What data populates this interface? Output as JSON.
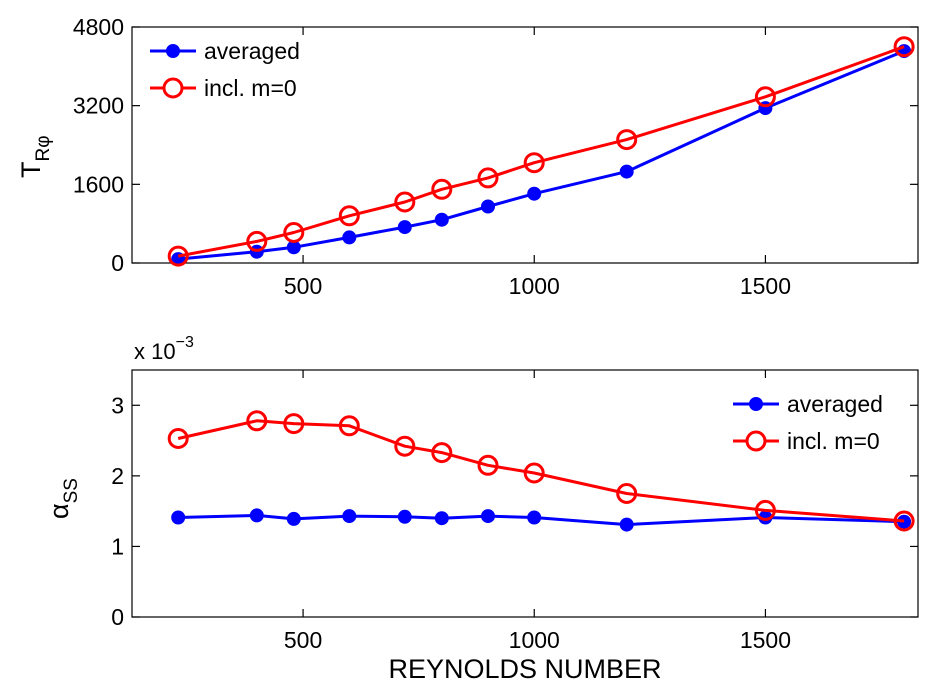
{
  "chart_data": [
    {
      "type": "line",
      "title": "",
      "xlabel": "",
      "ylabel": {
        "main": "T",
        "subscript": "Rφ"
      },
      "xlim": [
        130,
        1830
      ],
      "ylim": [
        0,
        4800
      ],
      "xticks": [
        500,
        1000,
        1500
      ],
      "yticks": [
        0,
        1600,
        3200,
        4800
      ],
      "legend": "top-left",
      "grid": false,
      "x": [
        230,
        400,
        480,
        600,
        720,
        800,
        900,
        1000,
        1200,
        1500,
        1800
      ],
      "series": [
        {
          "name": "averaged",
          "color": "#0000ff",
          "marker": "filled-circle",
          "values": [
            80,
            230,
            320,
            520,
            730,
            880,
            1150,
            1410,
            1860,
            3150,
            4310
          ]
        },
        {
          "name": "incl. m=0",
          "color": "#ff0000",
          "marker": "open-circle",
          "values": [
            140,
            440,
            620,
            960,
            1240,
            1500,
            1730,
            2040,
            2510,
            3380,
            4400
          ]
        }
      ]
    },
    {
      "type": "line",
      "title": "",
      "xlabel": "REYNOLDS NUMBER",
      "ylabel": {
        "main": "α",
        "subscript": "SS"
      },
      "multiplier": {
        "base": "x 10",
        "exponent": "−3"
      },
      "xlim": [
        130,
        1830
      ],
      "ylim": [
        0,
        3.5
      ],
      "xticks": [
        500,
        1000,
        1500
      ],
      "yticks": [
        0,
        1,
        2,
        3
      ],
      "legend": "top-right",
      "grid": false,
      "x": [
        230,
        400,
        480,
        600,
        720,
        800,
        900,
        1000,
        1200,
        1500,
        1800
      ],
      "series": [
        {
          "name": "averaged",
          "color": "#0000ff",
          "marker": "filled-circle",
          "values": [
            1.41,
            1.44,
            1.39,
            1.43,
            1.42,
            1.4,
            1.43,
            1.41,
            1.31,
            1.41,
            1.35
          ]
        },
        {
          "name": "incl. m=0",
          "color": "#ff0000",
          "marker": "open-circle",
          "values": [
            2.53,
            2.78,
            2.74,
            2.71,
            2.42,
            2.33,
            2.15,
            2.04,
            1.75,
            1.51,
            1.36
          ]
        }
      ]
    }
  ]
}
